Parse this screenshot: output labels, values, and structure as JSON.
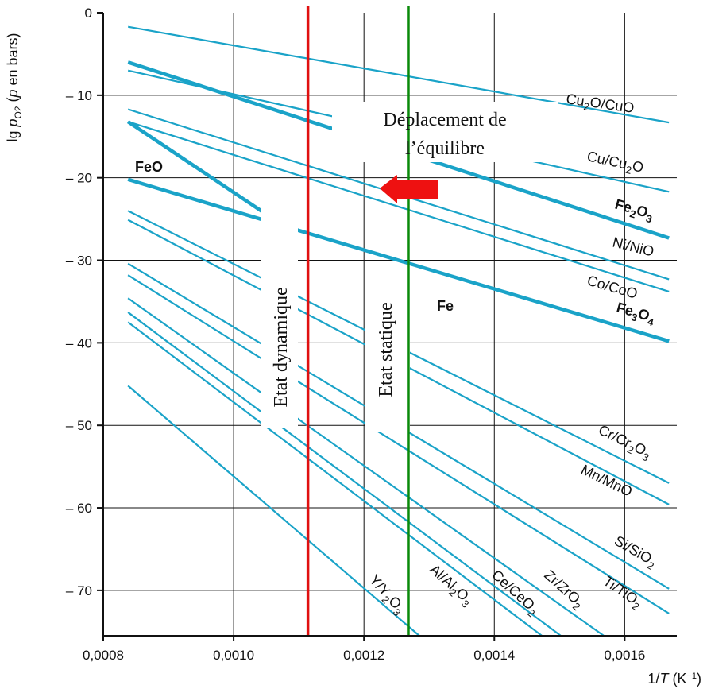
{
  "chart_data": {
    "type": "line",
    "ylabel": "lg pO2 (p en bars)",
    "xlabel": "1/T (K⁻¹)",
    "xlim": [
      0.0008,
      0.00168
    ],
    "ylim": [
      -75.5,
      0
    ],
    "xticks": [
      {
        "v": 0.0008,
        "label": "0,0008"
      },
      {
        "v": 0.001,
        "label": "0,0010"
      },
      {
        "v": 0.0012,
        "label": "0,0012"
      },
      {
        "v": 0.0014,
        "label": "0,0014"
      },
      {
        "v": 0.0016,
        "label": "0,0016"
      }
    ],
    "yticks": [
      {
        "v": 0,
        "label": "0"
      },
      {
        "v": -10,
        "label": "– 10"
      },
      {
        "v": -20,
        "label": "– 20"
      },
      {
        "v": -30,
        "label": "– 30"
      },
      {
        "v": -40,
        "label": "– 40"
      },
      {
        "v": -50,
        "label": "– 50"
      },
      {
        "v": -60,
        "label": "– 60"
      },
      {
        "v": -70,
        "label": "– 70"
      }
    ],
    "grid": true,
    "series": [
      {
        "name": "Cu2O/CuO",
        "x0": 0.000838,
        "y0": -1.7,
        "x1": 0.001668,
        "y1": -13.3,
        "bold": false
      },
      {
        "name": "Cu/Cu2O",
        "x0": 0.000838,
        "y0": -7.0,
        "x1": 0.001668,
        "y1": -21.7,
        "bold": false
      },
      {
        "name": "Fe2O3",
        "x0": 0.000838,
        "y0": -6.0,
        "x1": 0.001668,
        "y1": -27.3,
        "bold": true
      },
      {
        "name": "Ni/NiO",
        "x0": 0.000838,
        "y0": -11.7,
        "x1": 0.001668,
        "y1": -32.3,
        "bold": false
      },
      {
        "name": "Co/CoO",
        "x0": 0.000838,
        "y0": -13.2,
        "x1": 0.001668,
        "y1": -33.8,
        "bold": false
      },
      {
        "name": "Fe3O4",
        "x0": 0.000838,
        "y0": -20.2,
        "x1": 0.001668,
        "y1": -39.8,
        "bold": true
      },
      {
        "name": "FeO",
        "x0": 0.000838,
        "y0": -13.2,
        "x1": 0.00108,
        "y1": -26.0,
        "bold": true
      },
      {
        "name": "Cr/Cr2O3",
        "x0": 0.000838,
        "y0": -24.0,
        "x1": 0.001668,
        "y1": -57.0,
        "bold": false
      },
      {
        "name": "Mn/MnO",
        "x0": 0.000838,
        "y0": -25.1,
        "x1": 0.001668,
        "y1": -59.6,
        "bold": false
      },
      {
        "name": "Si/SiO2",
        "x0": 0.000838,
        "y0": -30.4,
        "x1": 0.001668,
        "y1": -69.8,
        "bold": false
      },
      {
        "name": "Ti/TiO2",
        "x0": 0.000838,
        "y0": -31.8,
        "x1": 0.001668,
        "y1": -72.8,
        "bold": false
      },
      {
        "name": "Zr/ZrO2",
        "x0": 0.000838,
        "y0": -34.6,
        "x1": 0.001568,
        "y1": -75.5,
        "bold": false
      },
      {
        "name": "Ce/CeO2",
        "x0": 0.000838,
        "y0": -36.3,
        "x1": 0.001502,
        "y1": -75.5,
        "bold": false
      },
      {
        "name": "Al/Al2O3",
        "x0": 0.000838,
        "y0": -37.5,
        "x1": 0.001473,
        "y1": -75.5,
        "bold": false
      },
      {
        "name": "Y/Y2O3",
        "x0": 0.000838,
        "y0": -45.2,
        "x1": 0.001285,
        "y1": -75.5,
        "bold": false
      }
    ],
    "vlines": [
      {
        "x": 0.001114,
        "color": "#e01010",
        "label": "Etat dynamique"
      },
      {
        "x": 0.001268,
        "color": "#0a8a0a",
        "label": "Etat statique"
      }
    ],
    "annotations": {
      "shift_line1": "Déplacement de",
      "shift_line2": "l’équilibre",
      "region_FeO": "FeO",
      "region_Fe": "Fe"
    }
  },
  "colors": {
    "series_line": "#1aa3c8",
    "arrow": "#ee1111"
  }
}
